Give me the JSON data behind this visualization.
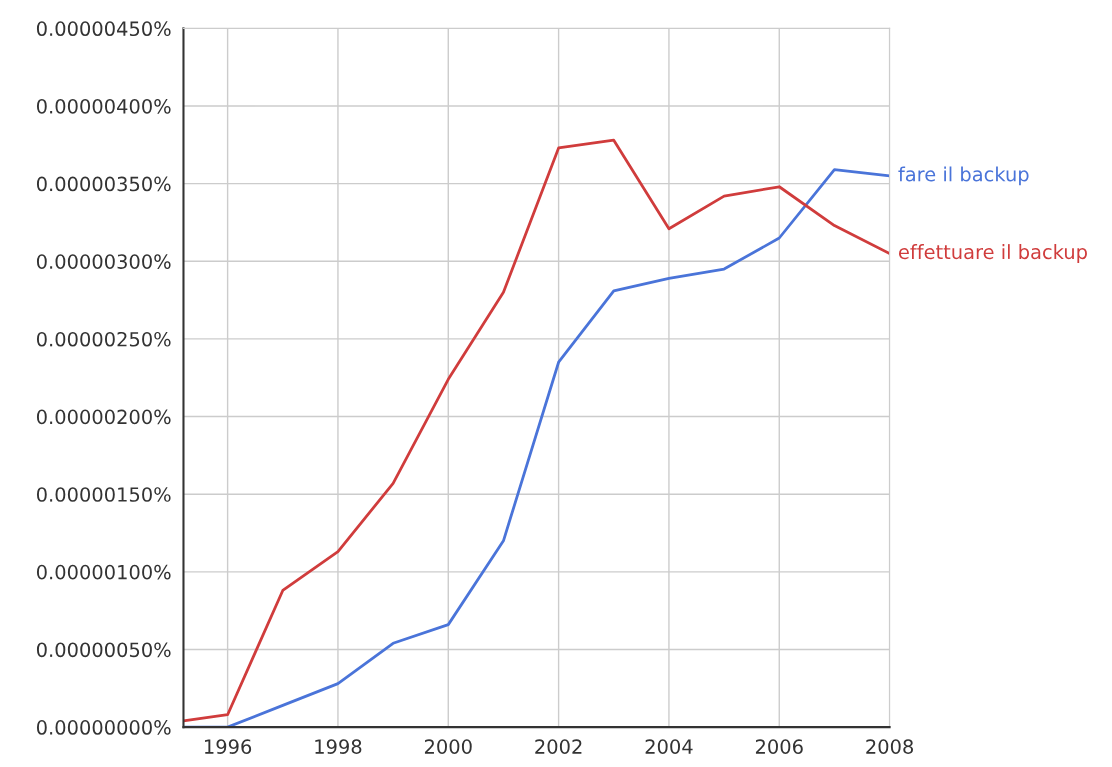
{
  "chart_data": {
    "type": "line",
    "x": [
      1995.2,
      1996,
      1997,
      1998,
      1999,
      2000,
      2001,
      2002,
      2003,
      2004,
      2005,
      2006,
      2007,
      2008
    ],
    "series": [
      {
        "name": "fare il backup",
        "color": "#4a74d9",
        "values": [
          0.0,
          0.0,
          1.4e-07,
          2.8e-07,
          5.4e-07,
          6.6e-07,
          1.2e-06,
          2.35e-06,
          2.81e-06,
          2.89e-06,
          2.95e-06,
          3.15e-06,
          3.59e-06,
          3.55e-06
        ]
      },
      {
        "name": "effettuare il backup",
        "color": "#d03c3c",
        "values": [
          4e-08,
          8e-08,
          8.8e-07,
          1.13e-06,
          1.57e-06,
          2.24e-06,
          2.8e-06,
          3.73e-06,
          3.78e-06,
          3.21e-06,
          3.42e-06,
          3.48e-06,
          3.23e-06,
          3.05e-06
        ]
      }
    ],
    "xlim": [
      1995.2,
      2008
    ],
    "xticks": [
      1996,
      1998,
      2000,
      2002,
      2004,
      2006,
      2008
    ],
    "ylim": [
      0,
      4.5e-06
    ],
    "yticks": [
      {
        "value": 0,
        "label": "0.00000000%"
      },
      {
        "value": 5e-07,
        "label": "0.00000050%"
      },
      {
        "value": 1e-06,
        "label": "0.00000100%"
      },
      {
        "value": 1.5e-06,
        "label": "0.00000150%"
      },
      {
        "value": 2e-06,
        "label": "0.00000200%"
      },
      {
        "value": 2.5e-06,
        "label": "0.00000250%"
      },
      {
        "value": 3e-06,
        "label": "0.00000300%"
      },
      {
        "value": 3.5e-06,
        "label": "0.00000350%"
      },
      {
        "value": 4e-06,
        "label": "0.00000400%"
      },
      {
        "value": 4.5e-06,
        "label": "0.00000450%"
      }
    ],
    "grid": true,
    "legend": false,
    "marker": "none",
    "line_style": "solid"
  }
}
